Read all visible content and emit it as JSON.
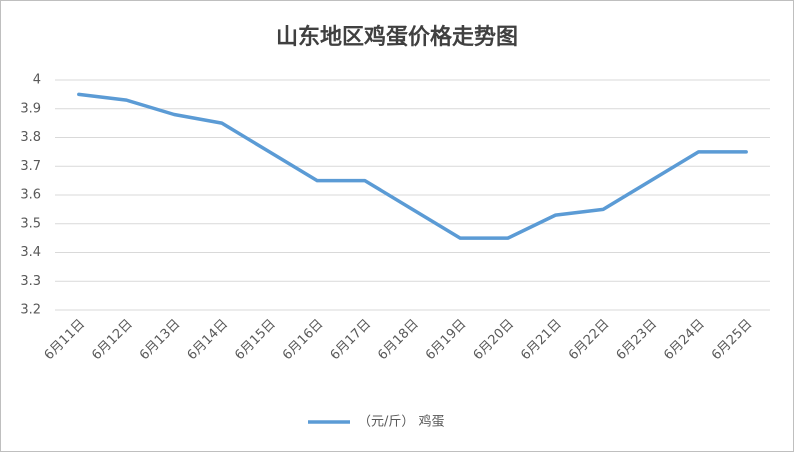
{
  "chart_data": {
    "type": "line",
    "title": "山东地区鸡蛋价格走势图",
    "categories": [
      "6月11日",
      "6月12日",
      "6月13日",
      "6月14日",
      "6月15日",
      "6月16日",
      "6月17日",
      "6月18日",
      "6月19日",
      "6月20日",
      "6月21日",
      "6月22日",
      "6月23日",
      "6月24日",
      "6月25日"
    ],
    "series": [
      {
        "name": "（元/斤） 鸡蛋",
        "color": "#5b9bd5",
        "values": [
          3.95,
          3.93,
          3.88,
          3.85,
          3.75,
          3.65,
          3.65,
          3.55,
          3.45,
          3.45,
          3.53,
          3.55,
          3.65,
          3.75,
          3.75
        ]
      }
    ],
    "ylim": [
      3.2,
      4
    ],
    "yticks": [
      3.2,
      3.3,
      3.4,
      3.5,
      3.6,
      3.7,
      3.8,
      3.9,
      4
    ],
    "grid": true,
    "legend": "bottom"
  }
}
